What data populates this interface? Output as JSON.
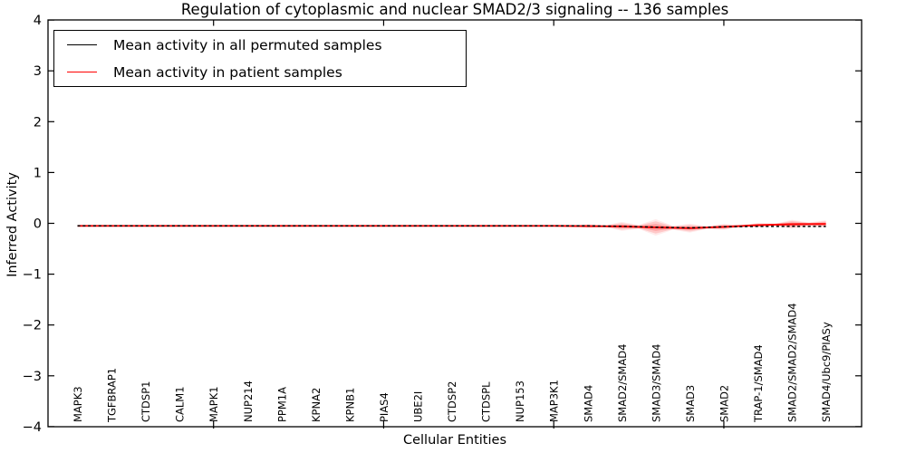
{
  "chart_data": {
    "type": "line",
    "title": "Regulation of cytoplasmic and nuclear SMAD2/3 signaling -- 136 samples",
    "xlabel": "Cellular Entities",
    "ylabel": "Inferred Activity",
    "ylim": [
      -4,
      4
    ],
    "yticks": [
      4,
      3,
      2,
      1,
      0,
      -1,
      -2,
      -3,
      -4
    ],
    "xtick_positions": [
      5,
      10,
      15,
      20
    ],
    "grid": false,
    "legend_position": "upper left",
    "categories": [
      "MAPK3",
      "TGFBRAP1",
      "CTDSP1",
      "CALM1",
      "MAPK1",
      "NUP214",
      "PPM1A",
      "KPNA2",
      "KPNB1",
      "PIAS4",
      "UBE2I",
      "CTDSP2",
      "CTDSPL",
      "NUP153",
      "MAP3K1",
      "SMAD4",
      "SMAD2/SMAD4",
      "SMAD3/SMAD4",
      "SMAD3",
      "SMAD2",
      "TRAP-1/SMAD4",
      "SMAD2/SMAD2/SMAD4",
      "SMAD4/Ubc9/PIASy"
    ],
    "legend": [
      {
        "label": "Mean activity in all permuted samples",
        "color": "#000000"
      },
      {
        "label": "Mean activity in patient samples",
        "color": "#ff0000"
      }
    ],
    "series": [
      {
        "name": "Mean activity in all permuted samples",
        "color": "#000000",
        "style": "dashed",
        "values": [
          -0.05,
          -0.05,
          -0.05,
          -0.05,
          -0.05,
          -0.05,
          -0.05,
          -0.05,
          -0.05,
          -0.05,
          -0.05,
          -0.05,
          -0.05,
          -0.05,
          -0.05,
          -0.05,
          -0.058,
          -0.075,
          -0.09,
          -0.068,
          -0.06,
          -0.058,
          -0.06
        ]
      },
      {
        "name": "Mean activity in patient samples",
        "color": "#ff0000",
        "style": "solid",
        "values": [
          -0.05,
          -0.05,
          -0.05,
          -0.05,
          -0.05,
          -0.05,
          -0.05,
          -0.05,
          -0.05,
          -0.05,
          -0.05,
          -0.05,
          -0.05,
          -0.05,
          -0.05,
          -0.055,
          -0.06,
          -0.08,
          -0.095,
          -0.07,
          -0.035,
          -0.018,
          -0.012
        ]
      }
    ],
    "violin_color": "#ff0000",
    "violin_halfwidths": [
      0.008,
      0.008,
      0.008,
      0.008,
      0.008,
      0.008,
      0.008,
      0.008,
      0.008,
      0.008,
      0.008,
      0.008,
      0.008,
      0.008,
      0.008,
      0.03,
      0.065,
      0.12,
      0.065,
      0.045,
      0.03,
      0.065,
      0.055
    ]
  }
}
